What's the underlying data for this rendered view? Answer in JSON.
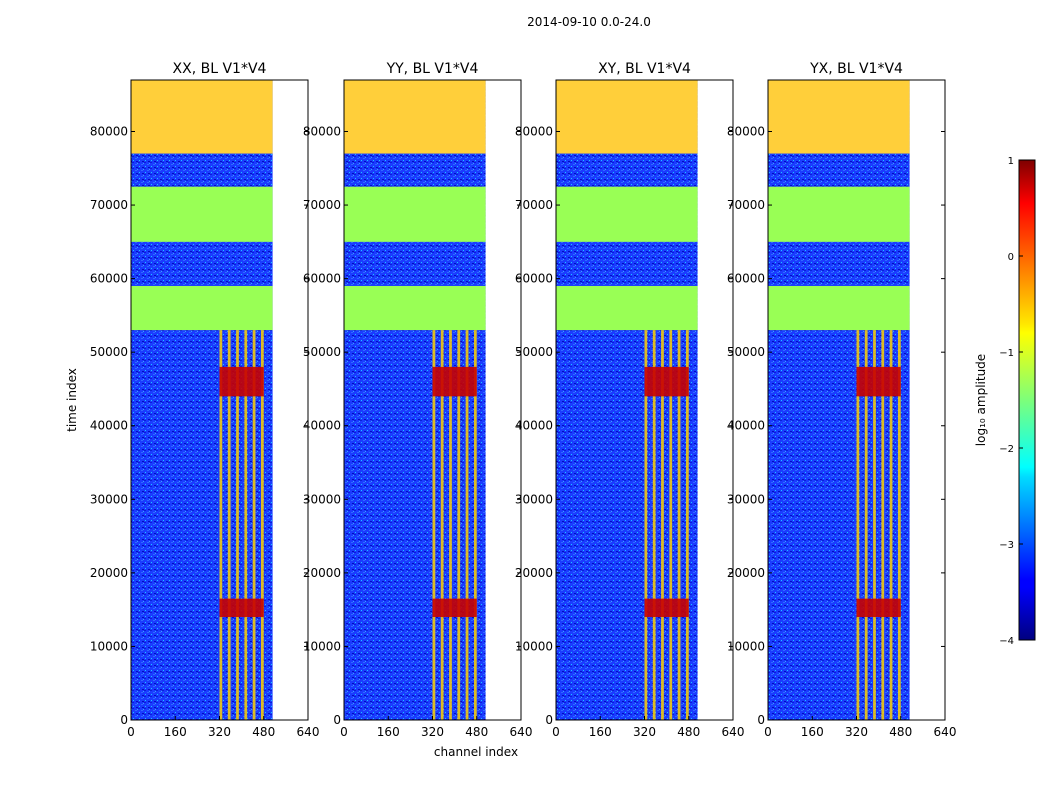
{
  "figure": {
    "suptitle": "2014-09-10 0.0-24.0"
  },
  "chart_data": {
    "type": "heatmap",
    "colormap": "jet",
    "panels": [
      {
        "title": "XX, BL V1*V4",
        "polarization": "XX",
        "baseline": "V1*V4"
      },
      {
        "title": "YY, BL V1*V4",
        "polarization": "YY",
        "baseline": "V1*V4"
      },
      {
        "title": "XY, BL V1*V4",
        "polarization": "XY",
        "baseline": "V1*V4"
      },
      {
        "title": "YX, BL V1*V4",
        "polarization": "YX",
        "baseline": "V1*V4"
      }
    ],
    "xlabel": "channel index",
    "ylabel": "time index",
    "x_ticks": [
      "0",
      "160",
      "320",
      "480",
      "640"
    ],
    "y_ticks": [
      "0",
      "10000",
      "20000",
      "30000",
      "40000",
      "50000",
      "60000",
      "70000",
      "80000"
    ],
    "xlim": [
      0,
      640
    ],
    "ylim": [
      0,
      87000
    ],
    "data_channel_extent": [
      0,
      512
    ],
    "flagged_time_ranges": [
      [
        53000,
        59000
      ],
      [
        65000,
        72500
      ]
    ],
    "flag_fill_color": "#99ff55",
    "rfi_channel_bands": [
      [
        320,
        330
      ],
      [
        350,
        360
      ],
      [
        380,
        390
      ],
      [
        410,
        420
      ],
      [
        440,
        450
      ],
      [
        470,
        480
      ]
    ],
    "colorbar": {
      "label": "log₁₀ amplitude",
      "min": -4,
      "max": 1,
      "ticks": [
        "−4",
        "−3",
        "−2",
        "−1",
        "0",
        "1"
      ]
    }
  }
}
